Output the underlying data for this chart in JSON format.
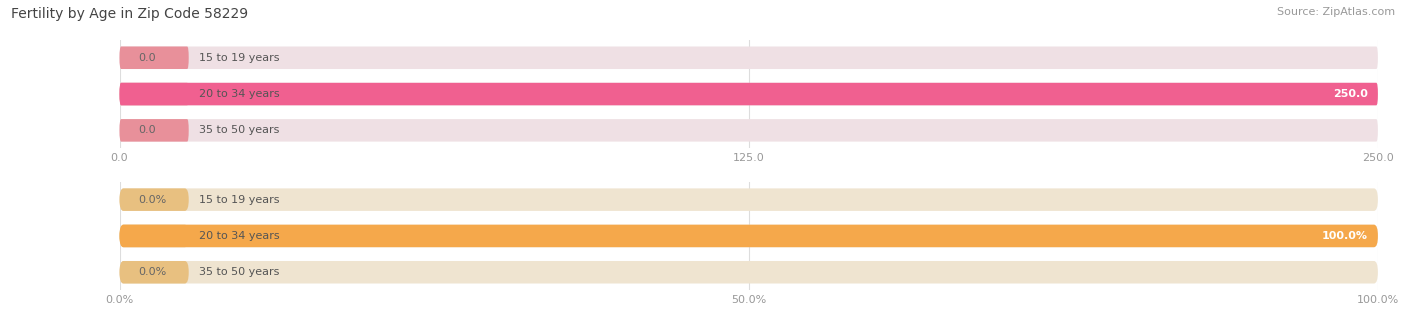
{
  "title": "Fertility by Age in Zip Code 58229",
  "source": "Source: ZipAtlas.com",
  "top_chart": {
    "categories": [
      "15 to 19 years",
      "20 to 34 years",
      "35 to 50 years"
    ],
    "values": [
      0.0,
      250.0,
      0.0
    ],
    "xlim": [
      0,
      250
    ],
    "xticks": [
      0.0,
      125.0,
      250.0
    ],
    "xticklabels": [
      "0.0",
      "125.0",
      "250.0"
    ],
    "bar_color": "#F06090",
    "bar_bg_color": "#EFE0E4",
    "cap_color": "#E8909A",
    "label_color_inside": "#FFFFFF",
    "label_color_outside": "#666666"
  },
  "bottom_chart": {
    "categories": [
      "15 to 19 years",
      "20 to 34 years",
      "35 to 50 years"
    ],
    "values": [
      0.0,
      100.0,
      0.0
    ],
    "xlim": [
      0,
      100
    ],
    "xticks": [
      0.0,
      50.0,
      100.0
    ],
    "xticklabels": [
      "0.0%",
      "50.0%",
      "100.0%"
    ],
    "bar_color": "#F5A84B",
    "bar_bg_color": "#EFE4D0",
    "cap_color": "#E8C080",
    "label_color_inside": "#FFFFFF",
    "label_color_outside": "#666666"
  },
  "bg_color": "#FFFFFF",
  "title_fontsize": 10,
  "source_fontsize": 8,
  "label_fontsize": 8,
  "tick_fontsize": 8,
  "bar_height": 0.62,
  "title_color": "#444444",
  "tick_color": "#999999",
  "grid_color": "#DDDDDD",
  "cat_label_color": "#555555"
}
